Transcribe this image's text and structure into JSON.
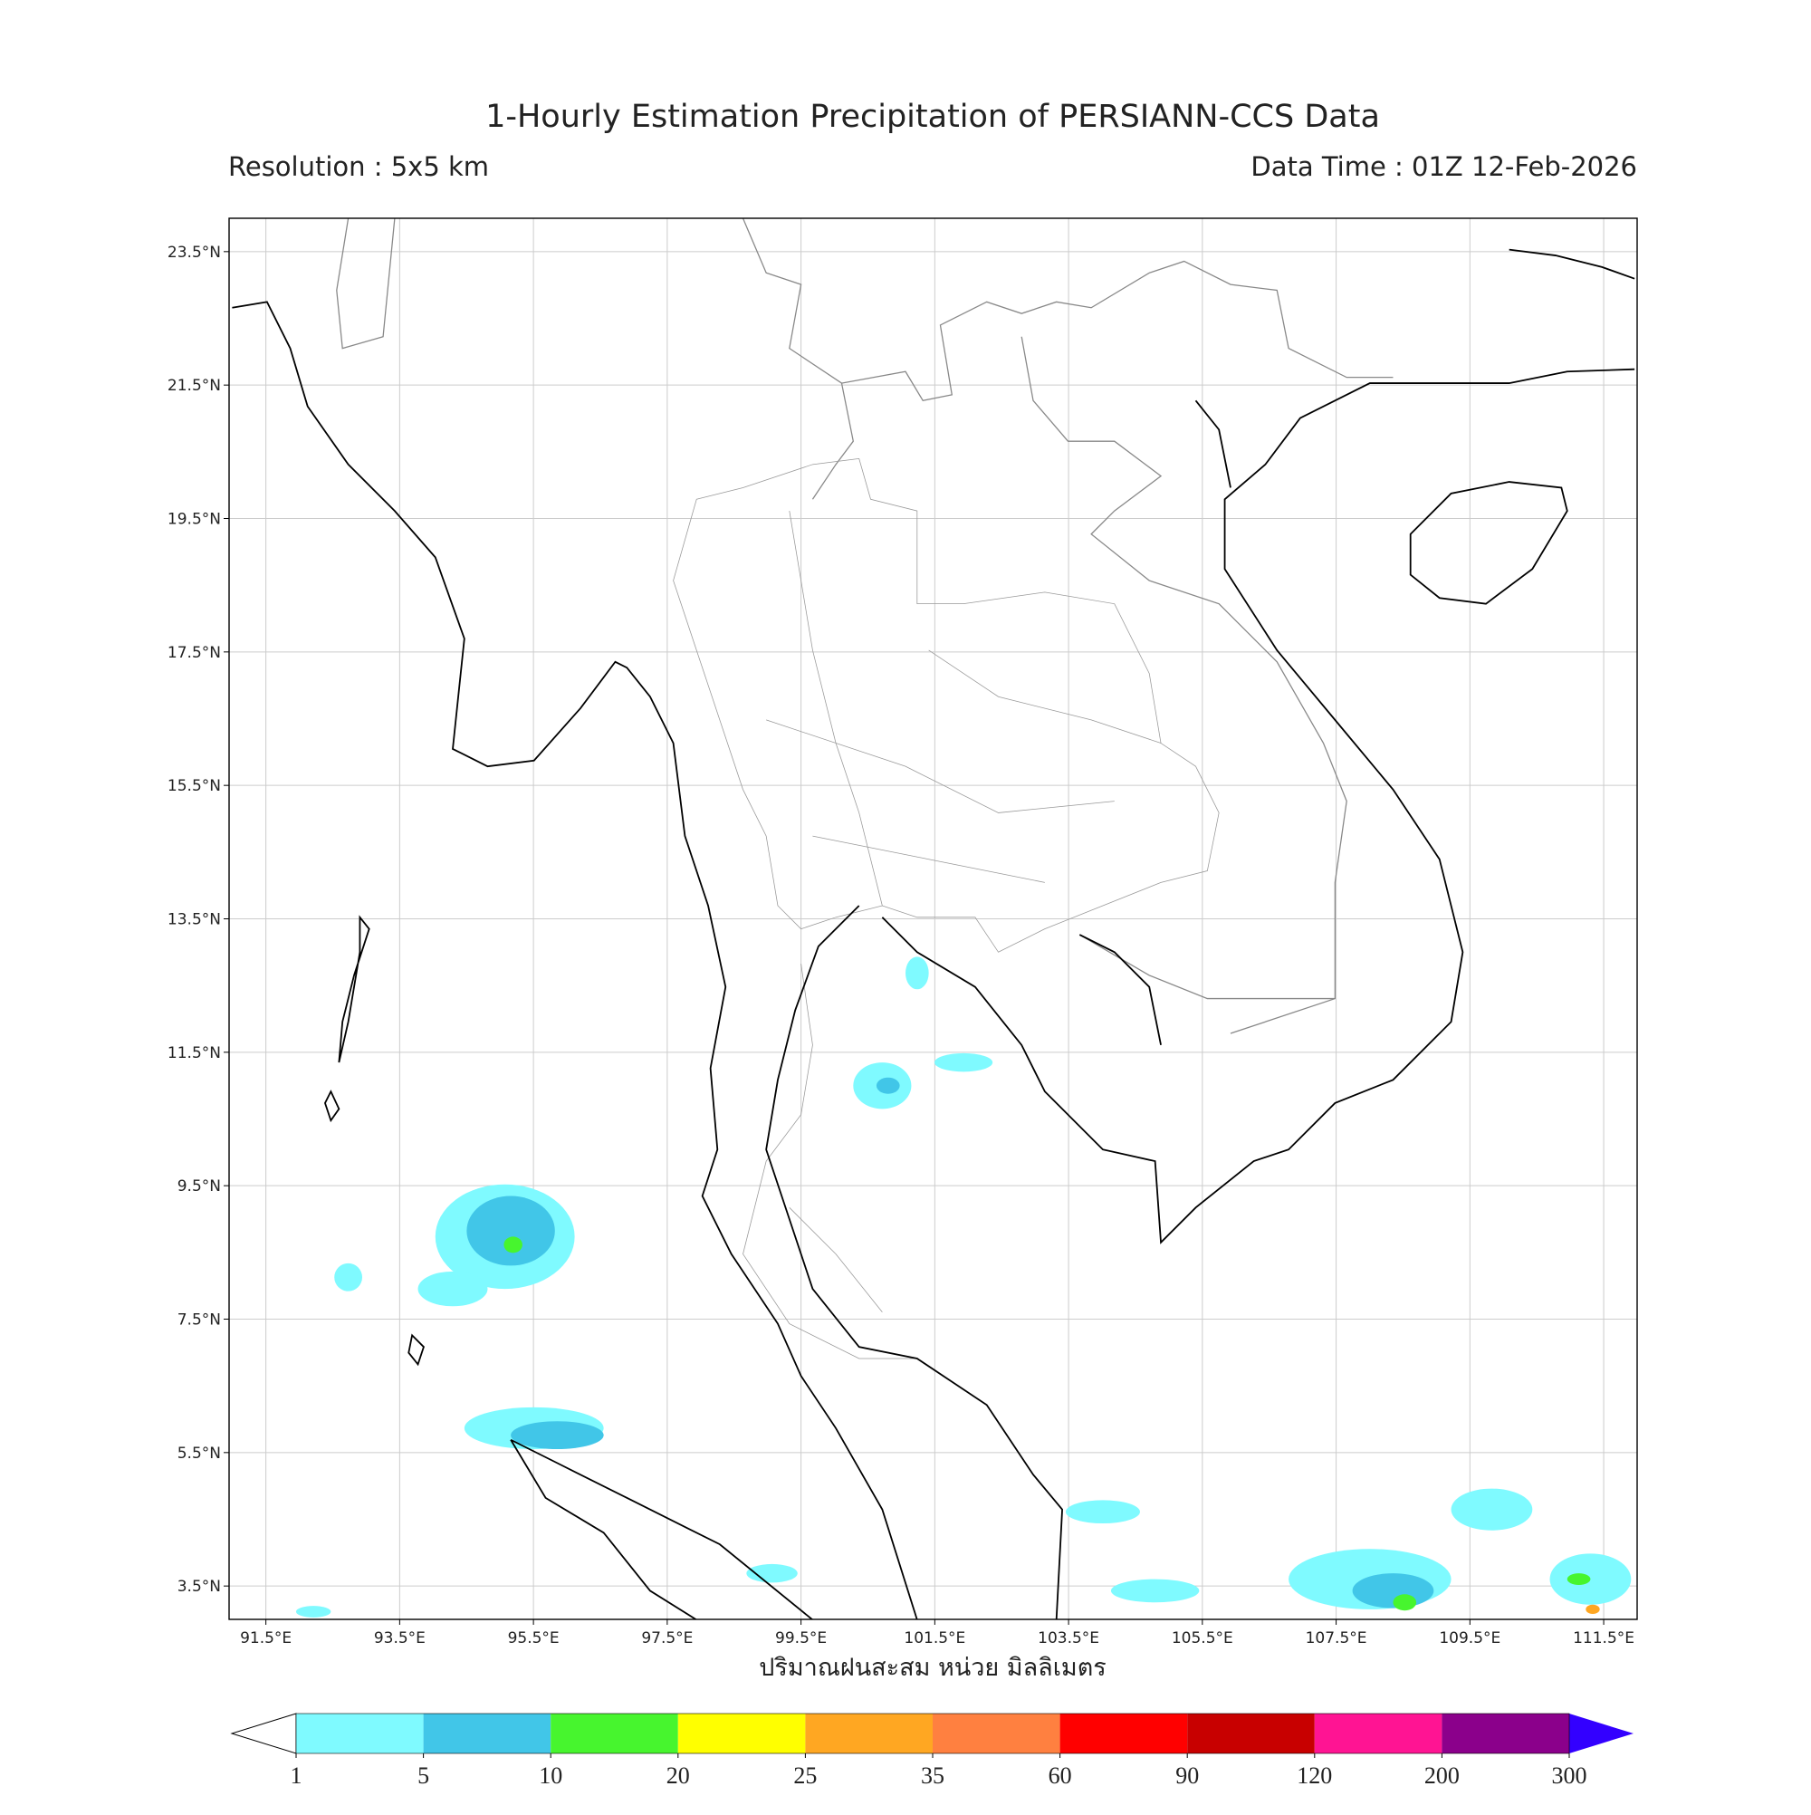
{
  "title": "1-Hourly Estimation Precipitation of PERSIANN-CCS Data",
  "subtitle_left": "Resolution : 5x5 km",
  "subtitle_right": "Data Time : 01Z 12-Feb-2026",
  "map": {
    "xlim": [
      90.95,
      112.0
    ],
    "ylim": [
      3.0,
      24.0
    ],
    "xticks": [
      {
        "value": 91.5,
        "label": "91.5°E"
      },
      {
        "value": 93.5,
        "label": "93.5°E"
      },
      {
        "value": 95.5,
        "label": "95.5°E"
      },
      {
        "value": 97.5,
        "label": "97.5°E"
      },
      {
        "value": 99.5,
        "label": "99.5°E"
      },
      {
        "value": 101.5,
        "label": "101.5°E"
      },
      {
        "value": 103.5,
        "label": "103.5°E"
      },
      {
        "value": 105.5,
        "label": "105.5°E"
      },
      {
        "value": 107.5,
        "label": "107.5°E"
      },
      {
        "value": 109.5,
        "label": "109.5°E"
      },
      {
        "value": 111.5,
        "label": "111.5°E"
      }
    ],
    "yticks": [
      {
        "value": 3.5,
        "label": "3.5°N"
      },
      {
        "value": 5.5,
        "label": "5.5°N"
      },
      {
        "value": 7.5,
        "label": "7.5°N"
      },
      {
        "value": 9.5,
        "label": "9.5°N"
      },
      {
        "value": 11.5,
        "label": "11.5°N"
      },
      {
        "value": 13.5,
        "label": "13.5°N"
      },
      {
        "value": 15.5,
        "label": "15.5°N"
      },
      {
        "value": 17.5,
        "label": "17.5°N"
      },
      {
        "value": 19.5,
        "label": "19.5°N"
      },
      {
        "value": 21.5,
        "label": "21.5°N"
      },
      {
        "value": 23.5,
        "label": "23.5°N"
      }
    ],
    "grid": true,
    "xlabel": "ปริมาณฝนสะสม หน่วย มิลลิเมตร"
  },
  "colorbar": {
    "levels": [
      1,
      5,
      10,
      20,
      25,
      35,
      60,
      90,
      120,
      200,
      300
    ],
    "colors": [
      "#7ffaff",
      "#41c6e8",
      "#47f52e",
      "#ffff00",
      "#ffa722",
      "#ff8040",
      "#ff0000",
      "#c80000",
      "#ff1493",
      "#8b008b"
    ],
    "under_color": "#ffffff",
    "over_color": "#3300ff"
  }
}
